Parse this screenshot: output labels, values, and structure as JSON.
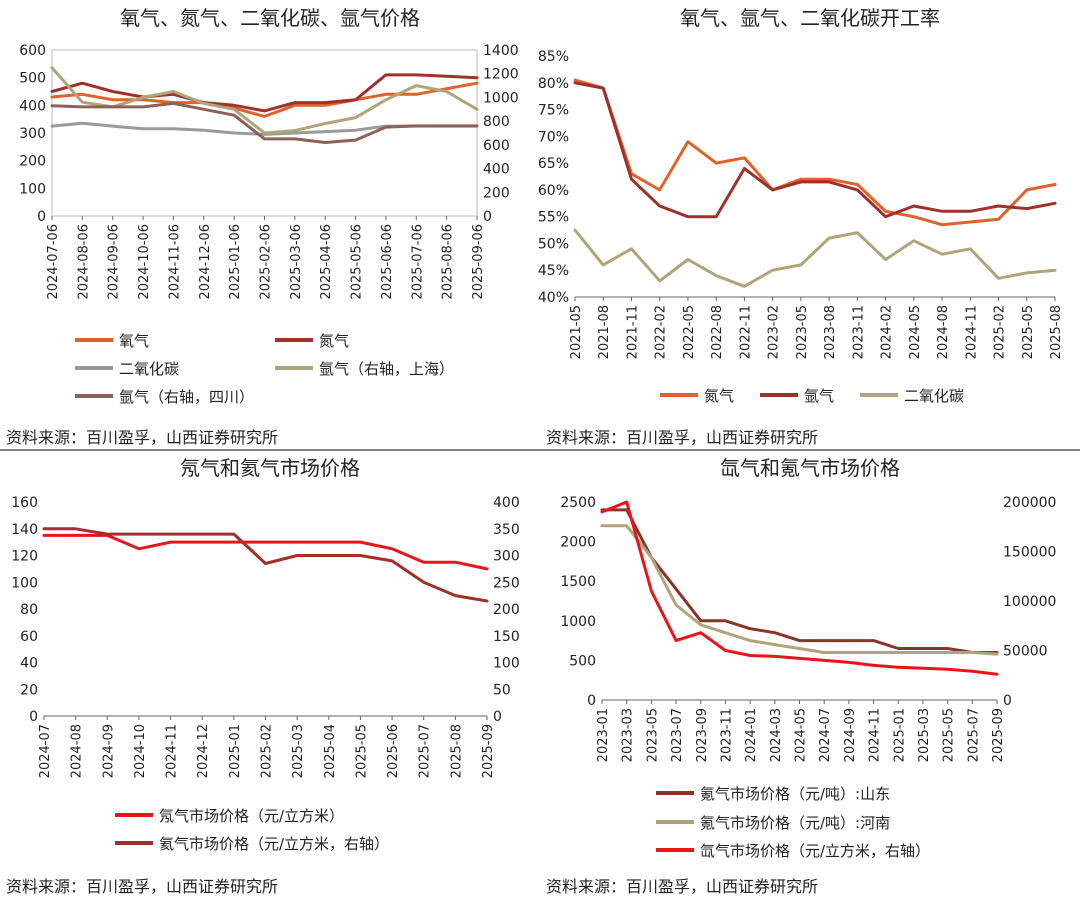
{
  "chart_data": [
    {
      "type": "line",
      "title": "氧气、氮气、二氧化碳、氩气价格",
      "x": [
        "2024-07-06",
        "2024-08-06",
        "2024-09-06",
        "2024-10-06",
        "2024-11-06",
        "2024-12-06",
        "2025-01-06",
        "2025-02-06",
        "2025-03-06",
        "2025-04-06",
        "2025-05-06",
        "2025-06-06",
        "2025-07-06",
        "2025-08-06",
        "2025-09-06"
      ],
      "ylim": [
        0,
        600
      ],
      "yticks": [
        "0",
        "100",
        "200",
        "300",
        "400",
        "500",
        "600"
      ],
      "y2lim": [
        0,
        1400
      ],
      "y2ticks": [
        "0",
        "200",
        "400",
        "600",
        "800",
        "1000",
        "1200",
        "1400"
      ],
      "series": [
        {
          "name": "氧气",
          "axis": "left",
          "color": "#e0622a",
          "values": [
            430,
            440,
            420,
            420,
            410,
            410,
            390,
            360,
            400,
            400,
            420,
            440,
            440,
            460,
            480
          ]
        },
        {
          "name": "氮气",
          "axis": "left",
          "color": "#a0302a",
          "values": [
            450,
            480,
            450,
            430,
            440,
            410,
            400,
            380,
            410,
            410,
            420,
            510,
            510,
            505,
            500
          ]
        },
        {
          "name": "二氧化碳",
          "axis": "left",
          "color": "#9a9a9a",
          "values": [
            325,
            335,
            325,
            315,
            315,
            310,
            300,
            295,
            300,
            305,
            310,
            325,
            325,
            325,
            325
          ]
        },
        {
          "name": "氩气（右轴，上海）",
          "axis": "right",
          "color": "#b0a47a",
          "values": [
            1250,
            960,
            920,
            1000,
            1050,
            950,
            900,
            700,
            720,
            780,
            830,
            980,
            1100,
            1050,
            900
          ]
        },
        {
          "name": "氩气（右轴，四川）",
          "axis": "right",
          "color": "#8d6158",
          "values": [
            930,
            920,
            920,
            920,
            950,
            900,
            850,
            650,
            650,
            620,
            640,
            750,
            760,
            760,
            760
          ]
        }
      ],
      "source": "资料来源：百川盈孚，山西证券研究所"
    },
    {
      "type": "line",
      "title": "氧气、氩气、二氧化碳开工率",
      "x": [
        "2021-05",
        "2021-08",
        "2021-11",
        "2022-02",
        "2022-05",
        "2022-08",
        "2022-11",
        "2023-02",
        "2023-05",
        "2023-08",
        "2023-11",
        "2024-02",
        "2024-05",
        "2024-08",
        "2024-11",
        "2025-02",
        "2025-05",
        "2025-08"
      ],
      "ylim": [
        40,
        85
      ],
      "yticks": [
        "40%",
        "45%",
        "50%",
        "55%",
        "60%",
        "65%",
        "70%",
        "75%",
        "80%",
        "85%"
      ],
      "series": [
        {
          "name": "氮气",
          "color": "#e0622a",
          "values": [
            80.5,
            79,
            63,
            60,
            69,
            65,
            66,
            60,
            62,
            62,
            61,
            56,
            55,
            53.5,
            54,
            54.5,
            60,
            61
          ]
        },
        {
          "name": "氩气",
          "color": "#a0302a",
          "values": [
            80,
            79,
            62,
            57,
            55,
            55,
            64,
            60,
            61.5,
            61.5,
            60,
            55,
            57,
            56,
            56,
            57,
            56.5,
            57.5
          ]
        },
        {
          "name": "二氧化碳",
          "color": "#b0a47a",
          "values": [
            52.5,
            46,
            49,
            43,
            47,
            44,
            42,
            45,
            46,
            51,
            52,
            47,
            50.5,
            48,
            49,
            43.5,
            44.5,
            45
          ]
        }
      ],
      "source": "资料来源：百川盈孚，山西证券研究所"
    },
    {
      "type": "line",
      "title": "氖气和氦气市场价格",
      "x": [
        "2024-07",
        "2024-08",
        "2024-09",
        "2024-10",
        "2024-11",
        "2024-12",
        "2025-01",
        "2025-02",
        "2025-03",
        "2025-04",
        "2025-05",
        "2025-06",
        "2025-07",
        "2025-08",
        "2025-09"
      ],
      "ylim": [
        0,
        160
      ],
      "yticks": [
        "0",
        "20",
        "40",
        "60",
        "80",
        "100",
        "120",
        "140",
        "160"
      ],
      "y2lim": [
        0,
        400
      ],
      "y2ticks": [
        "0",
        "50",
        "100",
        "150",
        "200",
        "250",
        "300",
        "350",
        "400"
      ],
      "series": [
        {
          "name": "氖气市场价格（元/立方米）",
          "axis": "left",
          "color": "#e8161b",
          "values": [
            135,
            135,
            135,
            125,
            130,
            130,
            130,
            130,
            130,
            130,
            130,
            125,
            115,
            115,
            110
          ]
        },
        {
          "name": "氦气市场价格（元/立方米，右轴）",
          "axis": "right",
          "color": "#a0302a",
          "values": [
            350,
            350,
            340,
            340,
            340,
            340,
            340,
            285,
            300,
            300,
            300,
            290,
            250,
            225,
            215
          ]
        }
      ],
      "source": "资料来源：百川盈孚，山西证券研究所"
    },
    {
      "type": "line",
      "title": "氙气和氪气市场价格",
      "x": [
        "2023-01",
        "2023-03",
        "2023-05",
        "2023-07",
        "2023-09",
        "2023-11",
        "2024-01",
        "2024-03",
        "2024-05",
        "2024-07",
        "2024-09",
        "2024-11",
        "2025-01",
        "2025-03",
        "2025-05",
        "2025-07",
        "2025-09"
      ],
      "ylim": [
        0,
        2500
      ],
      "yticks": [
        "0",
        "500",
        "1000",
        "1500",
        "2000",
        "2500"
      ],
      "y2lim": [
        0,
        200000
      ],
      "y2ticks": [
        "0",
        "50000",
        "100000",
        "150000",
        "200000"
      ],
      "series": [
        {
          "name": "氪气市场价格（元/吨）:山东",
          "axis": "left",
          "color": "#8a3328",
          "values": [
            2400,
            2400,
            1800,
            1400,
            1000,
            1000,
            900,
            850,
            750,
            750,
            750,
            750,
            650,
            650,
            650,
            600,
            600
          ]
        },
        {
          "name": "氪气市场价格（元/吨）:河南",
          "axis": "left",
          "color": "#b0a47a",
          "values": [
            2200,
            2200,
            1800,
            1200,
            950,
            850,
            750,
            700,
            650,
            600,
            600,
            600,
            600,
            600,
            600,
            600,
            580
          ]
        },
        {
          "name": "氙气市场价格（元/立方米，右轴）",
          "axis": "right",
          "color": "#e8161b",
          "values": [
            190000,
            200000,
            110000,
            60000,
            68000,
            50000,
            45000,
            44000,
            42000,
            40000,
            38000,
            35000,
            33000,
            32000,
            31000,
            29000,
            26000
          ]
        }
      ],
      "source": "资料来源：百川盈孚，山西证券研究所"
    }
  ]
}
